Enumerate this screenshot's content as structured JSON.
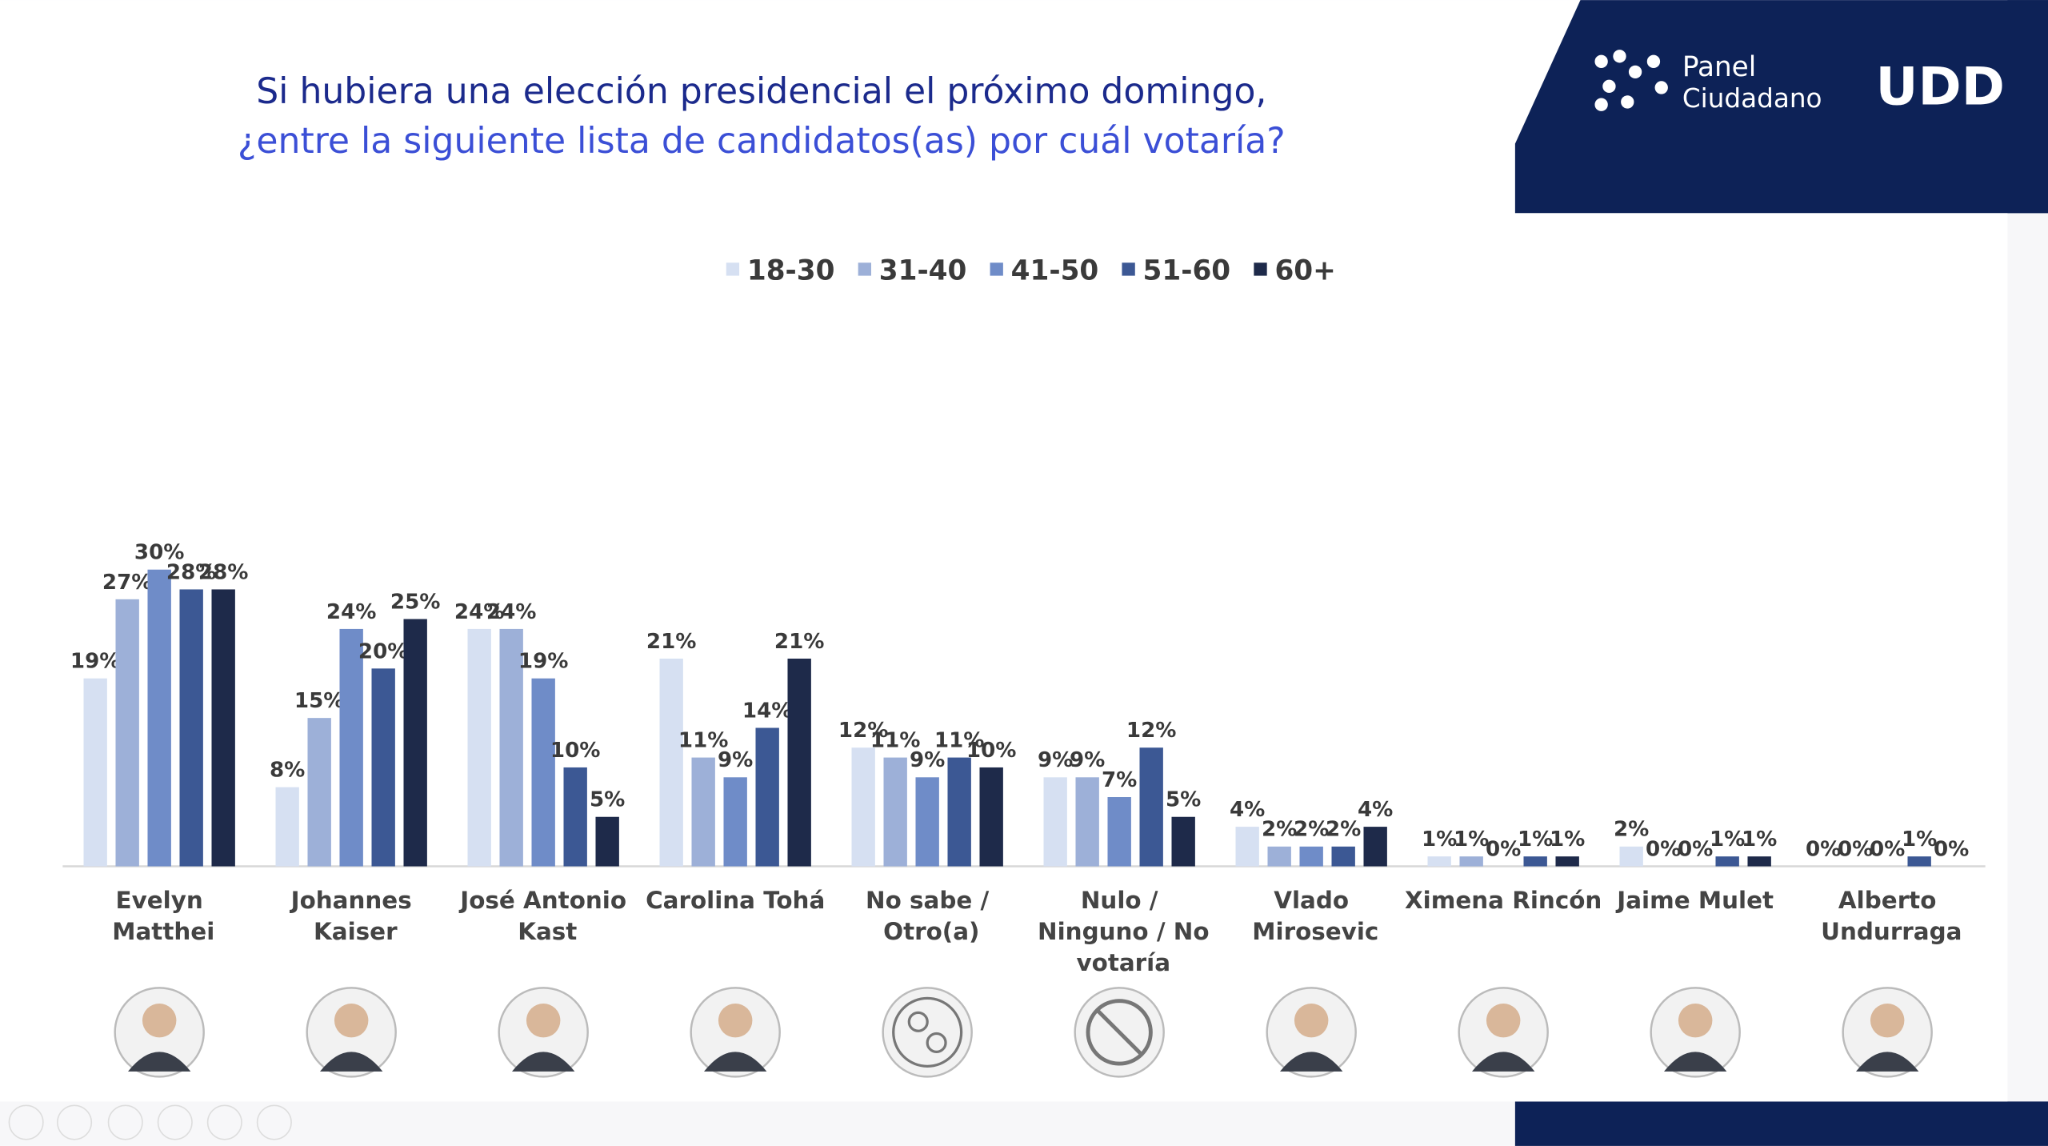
{
  "title_lines": [
    "Si hubiera una elección presidencial el próximo domingo,",
    "¿entre la siguiente lista de candidatos(as) por cuál votaría?"
  ],
  "logo": {
    "line1": "Panel",
    "line2": "Ciudadano",
    "brand": "UDD"
  },
  "chart_data": {
    "type": "bar",
    "categories": [
      "Evelyn Matthei",
      "Johannes Kaiser",
      "José Antonio Kast",
      "Carolina Tohá",
      "No sabe / Otro(a)",
      "Nulo / Ninguno / No votaría",
      "Vlado Mirosevic",
      "Ximena Rincón",
      "Jaime Mulet",
      "Alberto Undurraga"
    ],
    "legend": "top",
    "series": [
      {
        "name": "18-30",
        "color": "#d6e0f2",
        "values": [
          19,
          8,
          24,
          21,
          12,
          9,
          4,
          1,
          2,
          0
        ],
        "value_labels": [
          "19%",
          "8%",
          "24%",
          "21%",
          "12%",
          "9%",
          "4%",
          "1%",
          "2%",
          "0%"
        ]
      },
      {
        "name": "31-40",
        "color": "#9db0d8",
        "values": [
          27,
          15,
          24,
          11,
          11,
          9,
          2,
          1,
          0,
          0
        ],
        "value_labels": [
          "27%",
          "15%",
          "24%",
          "11%",
          "11%",
          "9%",
          "2%",
          "1%",
          "0%",
          "0%"
        ]
      },
      {
        "name": "41-50",
        "color": "#6f8cc8",
        "values": [
          30,
          24,
          19,
          9,
          9,
          7,
          2,
          0,
          0,
          0
        ],
        "value_labels": [
          "30%",
          "24%",
          "19%",
          "9%",
          "9%",
          "7%",
          "2%",
          "0%",
          "0%",
          "0%"
        ]
      },
      {
        "name": "51-60",
        "color": "#3c5894",
        "values": [
          28,
          20,
          10,
          14,
          11,
          12,
          2,
          1,
          1,
          1
        ],
        "value_labels": [
          "28%",
          "20%",
          "10%",
          "14%",
          "11%",
          "12%",
          "2%",
          "1%",
          "1%",
          "1%"
        ]
      },
      {
        "name": "60+",
        "color": "#1e2a4a",
        "values": [
          28,
          25,
          5,
          21,
          10,
          5,
          4,
          1,
          1,
          0
        ],
        "value_labels": [
          "28%",
          "25%",
          "5%",
          "21%",
          "10%",
          "5%",
          "4%",
          "1%",
          "1%",
          "0%"
        ]
      }
    ]
  }
}
